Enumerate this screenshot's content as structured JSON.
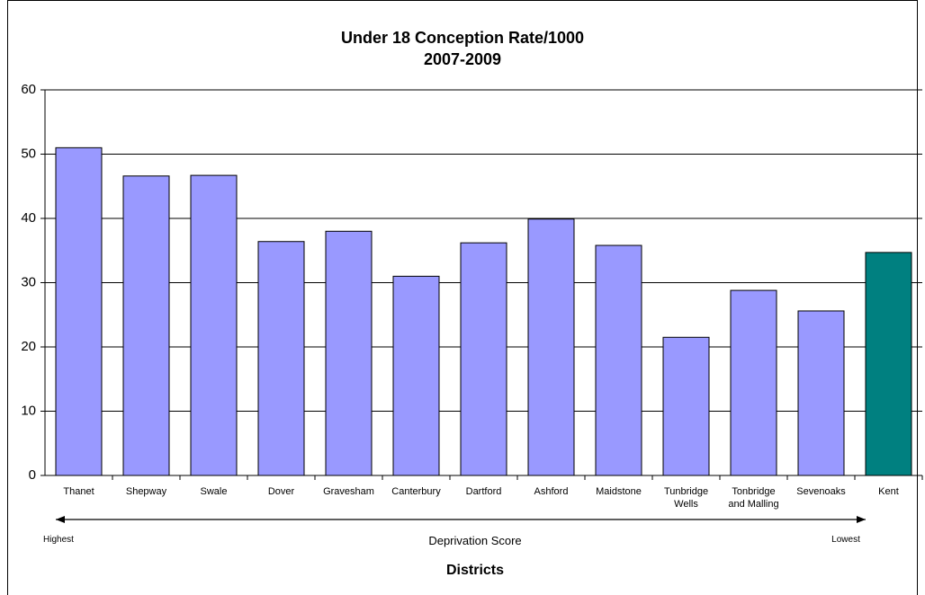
{
  "chart_data": {
    "type": "bar",
    "title": "Under 18 Conception Rate/1000\n2007-2009",
    "categories": [
      "Thanet",
      "Shepway",
      "Swale",
      "Dover",
      "Gravesham",
      "Canterbury",
      "Dartford",
      "Ashford",
      "Maidstone",
      "Tunbridge\nWells",
      "Tonbridge\nand Malling",
      "Sevenoaks",
      "Kent"
    ],
    "values": [
      51.0,
      46.6,
      46.7,
      36.4,
      38.0,
      31.0,
      36.2,
      39.9,
      35.8,
      21.5,
      28.8,
      25.6,
      34.7
    ],
    "colors": [
      "#9999ff",
      "#9999ff",
      "#9999ff",
      "#9999ff",
      "#9999ff",
      "#9999ff",
      "#9999ff",
      "#9999ff",
      "#9999ff",
      "#9999ff",
      "#9999ff",
      "#9999ff",
      "#008080"
    ],
    "ylim": [
      0,
      60
    ],
    "yticks": [
      0,
      10,
      20,
      30,
      40,
      50,
      60
    ],
    "grid": true,
    "annotations": {
      "left": "Highest",
      "middle": "Deprivation Score",
      "right": "Lowest"
    },
    "x_label": "Districts"
  }
}
